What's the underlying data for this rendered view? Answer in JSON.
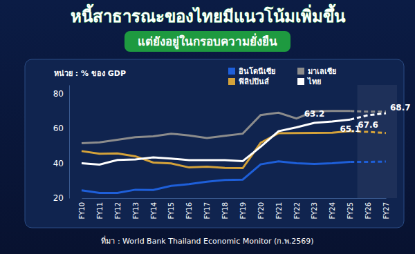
{
  "chart_data": {
    "type": "line",
    "title": "หนี้สาธารณะของไทยมีแนวโน้มเพิ่มขึ้น",
    "subtitle": "แต่ยังอยู่ในกรอบความยั่งยืน",
    "y_label": "หน่วย : % ของ GDP",
    "source": "ที่มา : World Bank Thailand Economic Monitor (ก.พ.2569)",
    "categories": [
      "FY10",
      "FY11",
      "FY12",
      "FY13",
      "FY14",
      "FY15",
      "FY16",
      "FY17",
      "FY18",
      "FY19",
      "FY20",
      "FY21",
      "FY22",
      "FY23",
      "FY24",
      "FY25",
      "FY26",
      "FY27"
    ],
    "series": [
      {
        "name": "อินโดนีเซีย",
        "color": "#1e5fd9",
        "line_style": "solid-dashed",
        "values": [
          24.5,
          23,
          23,
          24.8,
          24.7,
          27,
          28,
          29.4,
          30.4,
          30.6,
          39.4,
          41.1,
          40,
          39.6,
          40,
          40.8,
          40.8,
          41
        ]
      },
      {
        "name": "มาเลเซีย",
        "color": "#8c8c8c",
        "line_style": "solid-dashed",
        "values": [
          51.5,
          52,
          53.5,
          55,
          55.5,
          57,
          56,
          54.5,
          55.8,
          57,
          67.7,
          69,
          65.7,
          69.8,
          70,
          70,
          69.6,
          69.6
        ]
      },
      {
        "name": "ฟิลิปปินส์",
        "color": "#d4a23a",
        "line_style": "solid-dashed",
        "values": [
          47,
          45.5,
          45.7,
          44,
          40.4,
          39.9,
          37.6,
          38,
          37.3,
          37.2,
          51.7,
          57.3,
          57.4,
          57.5,
          57.6,
          58.4,
          58,
          57.4
        ]
      },
      {
        "name": "ไทย",
        "color": "#ffffff",
        "line_style": "solid-dashed",
        "data_labels": true,
        "values": [
          40,
          39.2,
          41.9,
          42.2,
          43.4,
          42.7,
          41.8,
          41.8,
          41.8,
          41.2,
          49.5,
          58.4,
          60.6,
          63.2,
          64,
          65.1,
          67.6,
          68.7
        ],
        "value_labels": [
          null,
          null,
          null,
          null,
          null,
          null,
          null,
          null,
          null,
          null,
          null,
          null,
          null,
          "63.2",
          null,
          "65.1",
          "67.6",
          "68.7"
        ]
      }
    ],
    "ylim": [
      20,
      85
    ],
    "yticks": [
      20,
      40,
      60,
      80
    ],
    "grid": false,
    "legend": "top-right"
  }
}
